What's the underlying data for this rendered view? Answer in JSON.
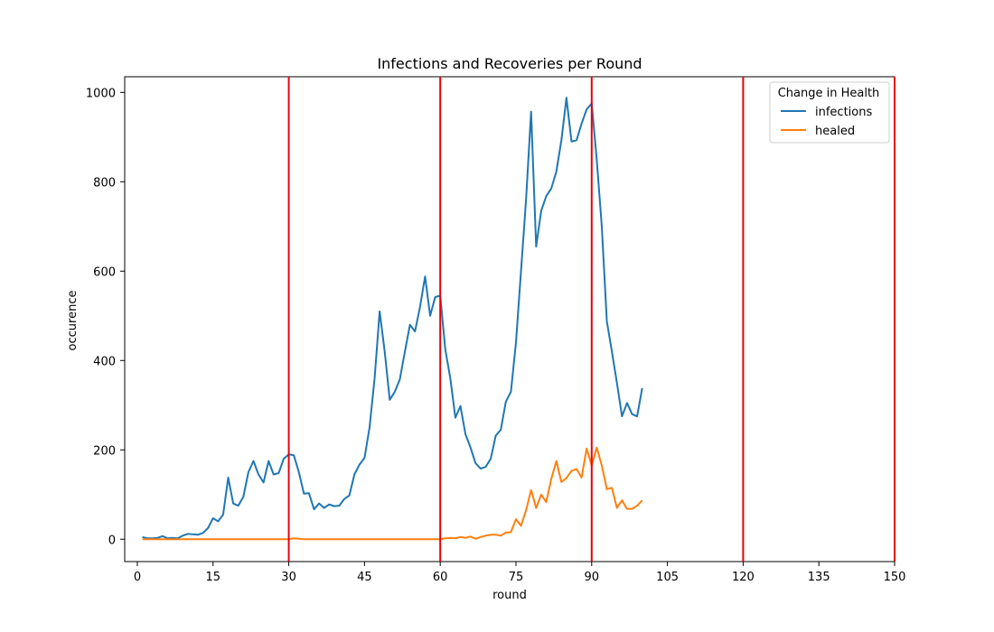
{
  "chart_data": {
    "type": "line",
    "title": "Infections and Recoveries per Round",
    "xlabel": "round",
    "ylabel": "occurence",
    "xlim": [
      -2.5,
      150
    ],
    "ylim": [
      -50,
      1035
    ],
    "xticks": [
      0,
      15,
      30,
      45,
      60,
      75,
      90,
      105,
      120,
      135,
      150
    ],
    "yticks": [
      0,
      200,
      400,
      600,
      800,
      1000
    ],
    "grid": false,
    "legend": {
      "title": "Change in Health",
      "placement": "top-right"
    },
    "vlines": {
      "color": "#e8000b",
      "x": [
        30,
        60,
        90,
        120,
        150
      ]
    },
    "series": [
      {
        "name": "infections",
        "color": "#1f77b4",
        "x": [
          1,
          2,
          3,
          4,
          5,
          6,
          7,
          8,
          9,
          10,
          11,
          12,
          13,
          14,
          15,
          16,
          17,
          18,
          19,
          20,
          21,
          22,
          23,
          24,
          25,
          26,
          27,
          28,
          29,
          30,
          31,
          32,
          33,
          34,
          35,
          36,
          37,
          38,
          39,
          40,
          41,
          42,
          43,
          44,
          45,
          46,
          47,
          48,
          49,
          50,
          51,
          52,
          53,
          54,
          55,
          56,
          57,
          58,
          59,
          60,
          61,
          62,
          63,
          64,
          65,
          66,
          67,
          68,
          69,
          70,
          71,
          72,
          73,
          74,
          75,
          76,
          77,
          78,
          79,
          80,
          81,
          82,
          83,
          84,
          85,
          86,
          87,
          88,
          89,
          90,
          91,
          92,
          93,
          94,
          95,
          96,
          97,
          98,
          99,
          100
        ],
        "values": [
          5,
          2,
          2,
          3,
          7,
          2,
          3,
          2,
          8,
          12,
          11,
          10,
          14,
          25,
          47,
          40,
          55,
          138,
          80,
          75,
          95,
          150,
          175,
          145,
          127,
          175,
          145,
          148,
          180,
          190,
          188,
          150,
          102,
          103,
          67,
          80,
          70,
          78,
          74,
          75,
          90,
          98,
          145,
          167,
          182,
          250,
          360,
          510,
          420,
          312,
          330,
          358,
          420,
          480,
          465,
          520,
          588,
          500,
          542,
          545,
          425,
          360,
          272,
          298,
          235,
          205,
          170,
          158,
          162,
          180,
          232,
          245,
          308,
          330,
          440,
          600,
          760,
          957,
          655,
          735,
          768,
          785,
          823,
          893,
          988,
          890,
          893,
          930,
          962,
          975,
          850,
          700,
          488,
          420,
          350,
          275,
          305,
          280,
          275,
          338
        ]
      },
      {
        "name": "healed",
        "color": "#ff7f0e",
        "x": [
          1,
          2,
          3,
          4,
          5,
          6,
          7,
          8,
          9,
          10,
          11,
          12,
          13,
          14,
          15,
          16,
          17,
          18,
          19,
          20,
          21,
          22,
          23,
          24,
          25,
          26,
          27,
          28,
          29,
          30,
          31,
          32,
          33,
          34,
          35,
          36,
          37,
          38,
          39,
          40,
          41,
          42,
          43,
          44,
          45,
          46,
          47,
          48,
          49,
          50,
          51,
          52,
          53,
          54,
          55,
          56,
          57,
          58,
          59,
          60,
          61,
          62,
          63,
          64,
          65,
          66,
          67,
          68,
          69,
          70,
          71,
          72,
          73,
          74,
          75,
          76,
          77,
          78,
          79,
          80,
          81,
          82,
          83,
          84,
          85,
          86,
          87,
          88,
          89,
          90,
          91,
          92,
          93,
          94,
          95,
          96,
          97,
          98,
          99,
          100
        ],
        "values": [
          0,
          0,
          0,
          0,
          0,
          0,
          0,
          0,
          0,
          0,
          0,
          0,
          0,
          0,
          0,
          0,
          0,
          0,
          0,
          0,
          0,
          0,
          0,
          0,
          0,
          0,
          0,
          0,
          0,
          0,
          2,
          1,
          0,
          0,
          0,
          0,
          0,
          0,
          0,
          0,
          0,
          0,
          0,
          0,
          0,
          0,
          0,
          0,
          0,
          0,
          0,
          0,
          0,
          0,
          0,
          0,
          0,
          0,
          0,
          0,
          2,
          3,
          2,
          5,
          3,
          6,
          1,
          5,
          8,
          10,
          10,
          8,
          15,
          16,
          45,
          30,
          65,
          110,
          70,
          100,
          83,
          135,
          175,
          128,
          137,
          153,
          157,
          138,
          203,
          165,
          205,
          165,
          112,
          115,
          70,
          87,
          68,
          68,
          75,
          87
        ]
      }
    ]
  }
}
